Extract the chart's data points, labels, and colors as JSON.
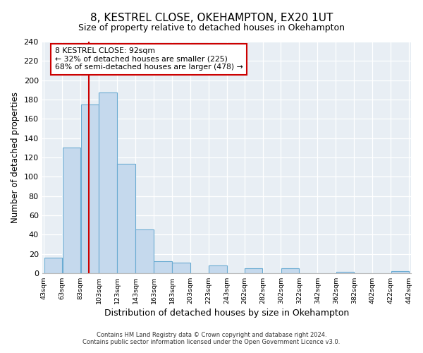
{
  "title": "8, KESTREL CLOSE, OKEHAMPTON, EX20 1UT",
  "subtitle": "Size of property relative to detached houses in Okehampton",
  "xlabel": "Distribution of detached houses by size in Okehampton",
  "ylabel": "Number of detached properties",
  "bar_lefts": [
    43,
    63,
    83,
    103,
    123,
    143,
    163,
    183,
    203,
    223,
    243,
    262,
    282,
    302,
    322,
    342,
    362,
    382,
    402,
    422
  ],
  "bar_widths": [
    20,
    20,
    20,
    20,
    20,
    20,
    20,
    20,
    20,
    20,
    19,
    20,
    20,
    20,
    20,
    20,
    20,
    20,
    20,
    20
  ],
  "bar_heights": [
    16,
    130,
    175,
    187,
    113,
    45,
    12,
    11,
    0,
    8,
    0,
    5,
    0,
    5,
    0,
    0,
    1,
    0,
    0,
    2
  ],
  "bar_color": "#c5d9ed",
  "bar_edgecolor": "#6aabd2",
  "property_line_x": 92,
  "property_line_color": "#cc0000",
  "ylim": [
    0,
    240
  ],
  "yticks": [
    0,
    20,
    40,
    60,
    80,
    100,
    120,
    140,
    160,
    180,
    200,
    220,
    240
  ],
  "annotation_line1": "8 KESTREL CLOSE: 92sqm",
  "annotation_line2": "← 32% of detached houses are smaller (225)",
  "annotation_line3": "68% of semi-detached houses are larger (478) →",
  "annotation_box_color": "#ffffff",
  "annotation_box_edgecolor": "#cc0000",
  "footer_line1": "Contains HM Land Registry data © Crown copyright and database right 2024.",
  "footer_line2": "Contains public sector information licensed under the Open Government Licence v3.0.",
  "tick_labels": [
    "43sqm",
    "63sqm",
    "83sqm",
    "103sqm",
    "123sqm",
    "143sqm",
    "163sqm",
    "183sqm",
    "203sqm",
    "223sqm",
    "243sqm",
    "262sqm",
    "282sqm",
    "302sqm",
    "322sqm",
    "342sqm",
    "362sqm",
    "382sqm",
    "402sqm",
    "422sqm",
    "442sqm"
  ],
  "tick_positions": [
    43,
    63,
    83,
    103,
    123,
    143,
    163,
    183,
    203,
    223,
    243,
    262,
    282,
    302,
    322,
    342,
    362,
    382,
    402,
    422,
    442
  ],
  "xlim_left": 43,
  "xlim_right": 442,
  "background_color": "#ffffff",
  "plot_bg_color": "#e8eef4"
}
